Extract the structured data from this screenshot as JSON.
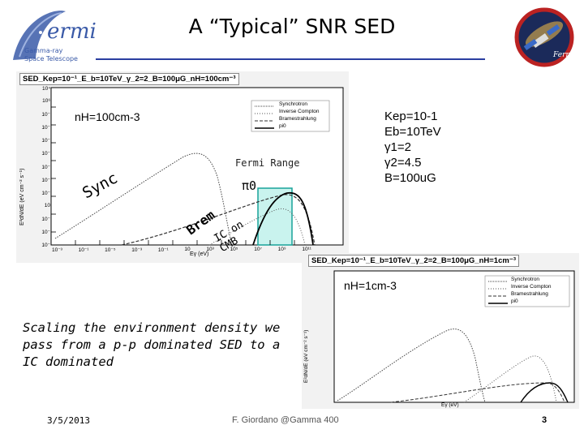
{
  "slide": {
    "title": "A “Typical” SNR SED",
    "logo": {
      "word": "ermi",
      "sub1": "Gamma-ray",
      "sub2": "Space Telescope"
    },
    "caption": "Scaling the environment density we pass from a p-p dominated SED to a IC dominated",
    "footer": {
      "date": "3/5/2013",
      "center": "F. Giordano @Gamma 400",
      "page": "3"
    },
    "colors": {
      "title_line": "#2a3ea0",
      "fermi_band": "#19a39a",
      "fermi_fill": "#c9f3ee",
      "logo_blue": "#3a5aa8"
    }
  },
  "plot1": {
    "title": "SED_Kep=10⁻¹_E_b=10TeV_γ_2=2_B=100μG_nH=100cm⁻³",
    "density_label": "nH=100cm-3",
    "legend": [
      "Synchrotron",
      "Inverse Compton",
      "Bramestrahlung",
      "pi0"
    ],
    "ylabel": "E²dN/dE (eV cm⁻² s⁻¹)",
    "xlabel": "Eγ (eV)",
    "xticks": [
      "10⁻³",
      "10⁻¹",
      "10⁻⁵",
      "10⁻³",
      "10⁻¹",
      "10",
      "10³",
      "10⁵",
      "10⁷",
      "10⁹",
      "10¹¹"
    ],
    "yticks": [
      "10⁴",
      "10⁶",
      "10⁻",
      "10⁻",
      "10⁻",
      "10⁻",
      "10⁻",
      "10⁻",
      "10⁻",
      "10",
      "10⁻",
      "10⁻",
      "10⁻"
    ],
    "annotations": {
      "sync": "Sync",
      "brem": "Brem",
      "ic": "IC on CMB",
      "pi0": "π0",
      "fermi": "Fermi Range"
    }
  },
  "params": {
    "kep": "Kep=10-1",
    "eb": "Eb=10TeV",
    "g1": "γ1=2",
    "g2": "γ2=4.5",
    "b": "B=100uG"
  },
  "plot2": {
    "title": "SED_Kep=10⁻¹_E_b=10TeV_γ_2=2_B=100μG_nH=1cm⁻³",
    "density_label": "nH=1cm-3",
    "legend": [
      "Synchrotron",
      "Inverse Compton",
      "Bramestrahlung",
      "pi0"
    ],
    "ylabel": "E²dN/dE (eV cm⁻² s⁻¹)",
    "xlabel": "Eγ (eV)"
  }
}
